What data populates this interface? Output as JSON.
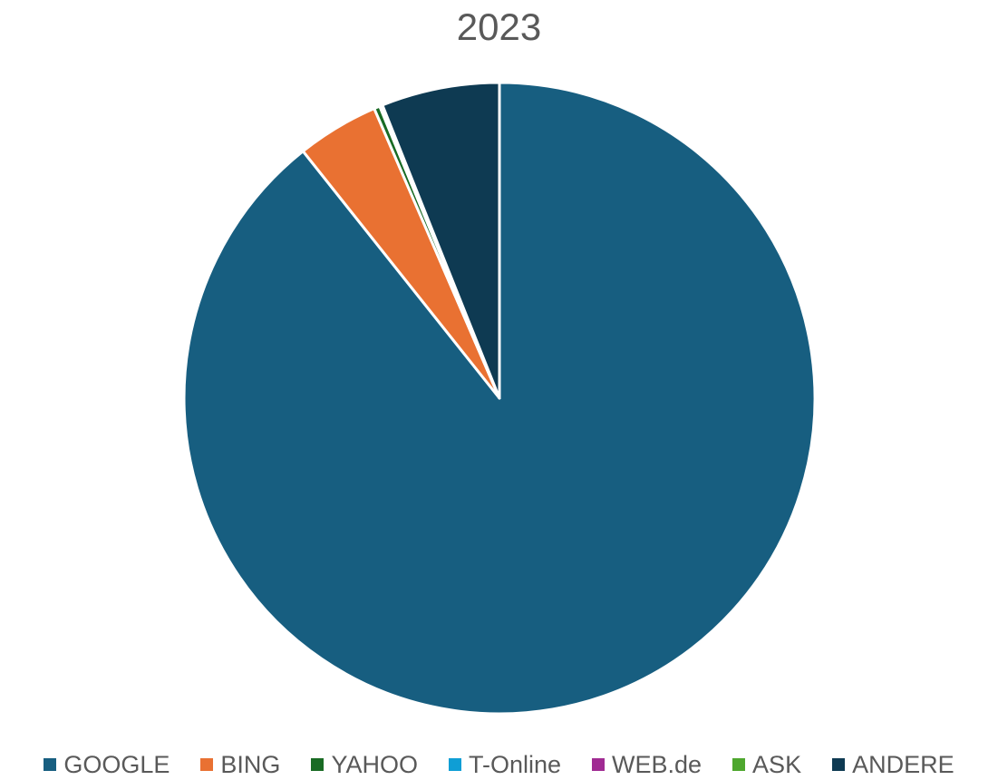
{
  "chart_data": {
    "type": "pie",
    "title": "2023",
    "start_angle_deg": 0,
    "direction": "clockwise",
    "legend_position": "bottom",
    "slices": [
      {
        "name": "GOOGLE",
        "value": 89.3,
        "color": "#175e80"
      },
      {
        "name": "BING",
        "value": 4.2,
        "color": "#e97132"
      },
      {
        "name": "YAHOO",
        "value": 0.3,
        "color": "#196b24"
      },
      {
        "name": "T-Online",
        "value": 0.05,
        "color": "#0f9ed5"
      },
      {
        "name": "WEB.de",
        "value": 0.05,
        "color": "#a02b93"
      },
      {
        "name": "ASK",
        "value": 0.05,
        "color": "#4ea72e"
      },
      {
        "name": "ANDERE",
        "value": 6.05,
        "color": "#0e3a52"
      }
    ]
  }
}
